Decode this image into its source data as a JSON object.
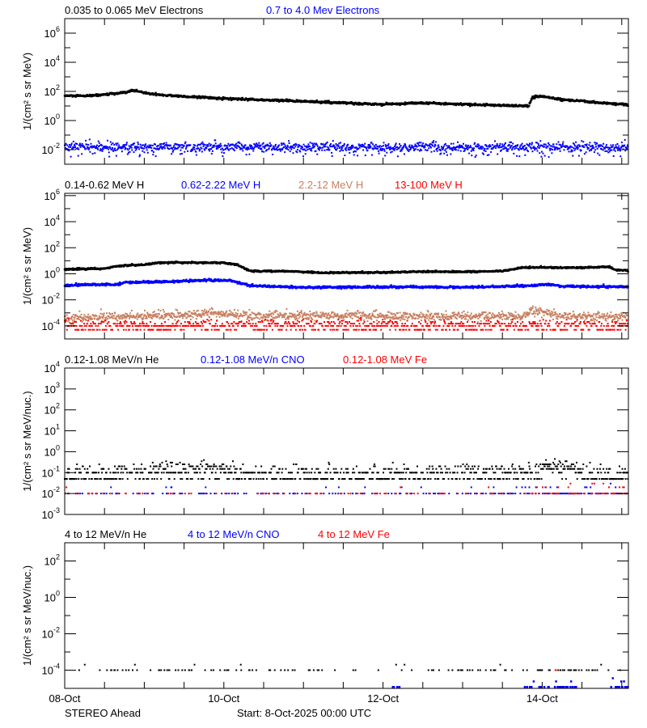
{
  "chart_data": [
    {
      "type": "scatter",
      "yscale": "log",
      "ylabel": "1/(cm² s sr MeV)",
      "ylim": [
        0.001,
        10000000.0
      ],
      "ytick_exponents": [
        -2,
        0,
        2,
        4,
        6
      ],
      "series": [
        {
          "name": "0.035 to 0.065 MeV Electrons",
          "color": "#000000",
          "points": [
            [
              "2025-10-08T00:00",
              50
            ],
            [
              "2025-10-08T06:00",
              48
            ],
            [
              "2025-10-08T12:00",
              60
            ],
            [
              "2025-10-08T18:00",
              80
            ],
            [
              "2025-10-08T21:00",
              120
            ],
            [
              "2025-10-09T00:00",
              80
            ],
            [
              "2025-10-09T04:00",
              60
            ],
            [
              "2025-10-09T12:00",
              45
            ],
            [
              "2025-10-10T00:00",
              32
            ],
            [
              "2025-10-10T12:00",
              26
            ],
            [
              "2025-10-11T00:00",
              21
            ],
            [
              "2025-10-11T12:00",
              16
            ],
            [
              "2025-10-12T00:00",
              13
            ],
            [
              "2025-10-12T12:00",
              16
            ],
            [
              "2025-10-13T00:00",
              13
            ],
            [
              "2025-10-13T12:00",
              11
            ],
            [
              "2025-10-13T20:00",
              10
            ],
            [
              "2025-10-13T21:00",
              40
            ],
            [
              "2025-10-14T00:00",
              45
            ],
            [
              "2025-10-14T06:00",
              28
            ],
            [
              "2025-10-14T18:00",
              16
            ],
            [
              "2025-10-15T02:00",
              12
            ]
          ]
        },
        {
          "name": "0.7 to 4.0 Mev Electrons",
          "color": "#0000ff",
          "points": [
            [
              "2025-10-08T00:00",
              0.015
            ],
            [
              "2025-10-15T02:00",
              0.015
            ]
          ]
        }
      ]
    },
    {
      "type": "scatter",
      "yscale": "log",
      "ylabel": "1/(cm² s sr MeV)",
      "ylim": [
        1e-05,
        1500000.0
      ],
      "ytick_exponents": [
        -4,
        -2,
        0,
        2,
        4,
        6
      ],
      "series": [
        {
          "name": "0.14-0.62 MeV H",
          "color": "#000000",
          "points": [
            [
              "2025-10-08T00:00",
              2.2
            ],
            [
              "2025-10-08T12:00",
              2.5
            ],
            [
              "2025-10-08T16:00",
              4
            ],
            [
              "2025-10-09T00:00",
              5
            ],
            [
              "2025-10-09T04:00",
              7
            ],
            [
              "2025-10-09T12:00",
              7.5
            ],
            [
              "2025-10-10T00:00",
              7
            ],
            [
              "2025-10-10T04:00",
              5
            ],
            [
              "2025-10-10T08:00",
              1.6
            ],
            [
              "2025-10-10T18:00",
              1.6
            ],
            [
              "2025-10-11T06:00",
              1.2
            ],
            [
              "2025-10-12T00:00",
              1.3
            ],
            [
              "2025-10-12T12:00",
              1.5
            ],
            [
              "2025-10-13T00:00",
              1.4
            ],
            [
              "2025-10-13T12:00",
              1.6
            ],
            [
              "2025-10-13T18:00",
              3
            ],
            [
              "2025-10-14T12:00",
              3
            ],
            [
              "2025-10-14T20:00",
              3.5
            ],
            [
              "2025-10-14T22:00",
              2
            ],
            [
              "2025-10-15T02:00",
              1.8
            ]
          ]
        },
        {
          "name": "0.62-2.22 MeV H",
          "color": "#0000ff",
          "points": [
            [
              "2025-10-08T00:00",
              0.14
            ],
            [
              "2025-10-08T16:00",
              0.15
            ],
            [
              "2025-10-08T18:00",
              0.22
            ],
            [
              "2025-10-09T00:00",
              0.22
            ],
            [
              "2025-10-09T20:00",
              0.32
            ],
            [
              "2025-10-10T02:00",
              0.3
            ],
            [
              "2025-10-10T08:00",
              0.12
            ],
            [
              "2025-10-11T00:00",
              0.09
            ],
            [
              "2025-10-12T12:00",
              0.1
            ],
            [
              "2025-10-13T00:00",
              0.09
            ],
            [
              "2025-10-13T20:00",
              0.12
            ],
            [
              "2025-10-14T02:00",
              0.16
            ],
            [
              "2025-10-14T06:00",
              0.11
            ],
            [
              "2025-10-15T02:00",
              0.1
            ]
          ]
        },
        {
          "name": "2.2-12 MeV H",
          "color": "#c87f5f",
          "points": [
            [
              "2025-10-08T00:00",
              0.0004
            ],
            [
              "2025-10-09T00:00",
              0.0006
            ],
            [
              "2025-10-10T00:00",
              0.001
            ],
            [
              "2025-10-10T06:00",
              0.0006
            ],
            [
              "2025-10-12T00:00",
              0.0006
            ],
            [
              "2025-10-13T18:00",
              0.0005
            ],
            [
              "2025-10-13T21:00",
              0.0016
            ],
            [
              "2025-10-14T06:00",
              0.0006
            ],
            [
              "2025-10-15T02:00",
              0.0005
            ]
          ]
        },
        {
          "name": "13-100 MeV H",
          "color": "#ff0000",
          "points": [
            [
              "2025-10-08T00:00",
              0.0001
            ],
            [
              "2025-10-15T02:00",
              0.0001
            ]
          ]
        }
      ]
    },
    {
      "type": "scatter",
      "yscale": "log",
      "ylabel": "1/(cm² s sr MeV/nuc.)",
      "ylim": [
        0.001,
        10000.0
      ],
      "ytick_exponents": [
        -3,
        -2,
        -1,
        0,
        1,
        2,
        3,
        4
      ],
      "series": [
        {
          "name": "0.12-1.08 MeV/n He",
          "color": "#000000",
          "points": [
            [
              "2025-10-08T00:00",
              0.07
            ],
            [
              "2025-10-09T00:00",
              0.1
            ],
            [
              "2025-10-09T12:00",
              0.15
            ],
            [
              "2025-10-10T00:00",
              0.15
            ],
            [
              "2025-10-10T06:00",
              0.08
            ],
            [
              "2025-10-13T18:00",
              0.08
            ],
            [
              "2025-10-14T02:00",
              0.2
            ],
            [
              "2025-10-14T08:00",
              0.2
            ],
            [
              "2025-10-14T12:00",
              0.08
            ],
            [
              "2025-10-15T02:00",
              0.08
            ]
          ]
        },
        {
          "name": "0.12-1.08 MeV/n CNO",
          "color": "#0000ff",
          "points": [
            [
              "2025-10-08T00:00",
              0.002
            ],
            [
              "2025-10-13T18:00",
              0.002
            ],
            [
              "2025-10-14T00:00",
              0.005
            ],
            [
              "2025-10-15T02:00",
              0.005
            ]
          ]
        },
        {
          "name": "0.12-1.08 MeV Fe",
          "color": "#ff0000",
          "points": [
            [
              "2025-10-08T00:00",
              0.001
            ],
            [
              "2025-10-13T18:00",
              0.001
            ],
            [
              "2025-10-14T00:00",
              0.005
            ],
            [
              "2025-10-15T02:00",
              0.005
            ]
          ]
        }
      ]
    },
    {
      "type": "scatter",
      "yscale": "log",
      "ylabel": "1/(cm² s sr MeV/nuc.)",
      "ylim": [
        1e-05,
        1000.0
      ],
      "ytick_exponents": [
        -4,
        -2,
        0,
        2
      ],
      "series": [
        {
          "name": "4 to 12 MeV/n He",
          "color": "#000000",
          "points": [
            [
              "2025-10-08T00:00",
              1.2e-05
            ],
            [
              "2025-10-15T02:00",
              1.2e-05
            ]
          ]
        },
        {
          "name": "4 to 12 MeV/n CNO",
          "color": "#0000ff",
          "points": [
            [
              "2025-10-08T00:00",
              0
            ],
            [
              "2025-10-12T02:00",
              0
            ],
            [
              "2025-10-12T04:00",
              4e-06
            ],
            [
              "2025-10-12T06:00",
              0
            ],
            [
              "2025-10-13T18:00",
              0
            ],
            [
              "2025-10-13T19:00",
              5e-06
            ],
            [
              "2025-10-14T10:00",
              5e-06
            ],
            [
              "2025-10-14T11:00",
              0
            ],
            [
              "2025-10-14T20:00",
              0
            ],
            [
              "2025-10-14T21:00",
              5e-06
            ],
            [
              "2025-10-15T02:00",
              5e-06
            ]
          ]
        },
        {
          "name": "4 to 12 MeV Fe",
          "color": "#ff0000",
          "points": [
            [
              "2025-10-08T00:00",
              0
            ],
            [
              "2025-10-13T18:00",
              0
            ],
            [
              "2025-10-13T19:00",
              2e-06
            ],
            [
              "2025-10-14T04:00",
              2e-06
            ],
            [
              "2025-10-14T05:00",
              0
            ],
            [
              "2025-10-15T02:00",
              0
            ]
          ]
        }
      ]
    }
  ],
  "xaxis": {
    "xlim": [
      "2025-10-08T00:00",
      "2025-10-15T02:00"
    ],
    "tick_labels": [
      {
        "label": "08-Oct",
        "date": "2025-10-08T00:00"
      },
      {
        "label": "10-Oct",
        "date": "2025-10-10T00:00"
      },
      {
        "label": "12-Oct",
        "date": "2025-10-12T00:00"
      },
      {
        "label": "14-Oct",
        "date": "2025-10-14T00:00"
      }
    ]
  },
  "footer": {
    "spacecraft": "STEREO Ahead",
    "start": "Start:  8-Oct-2025 00:00 UTC"
  }
}
